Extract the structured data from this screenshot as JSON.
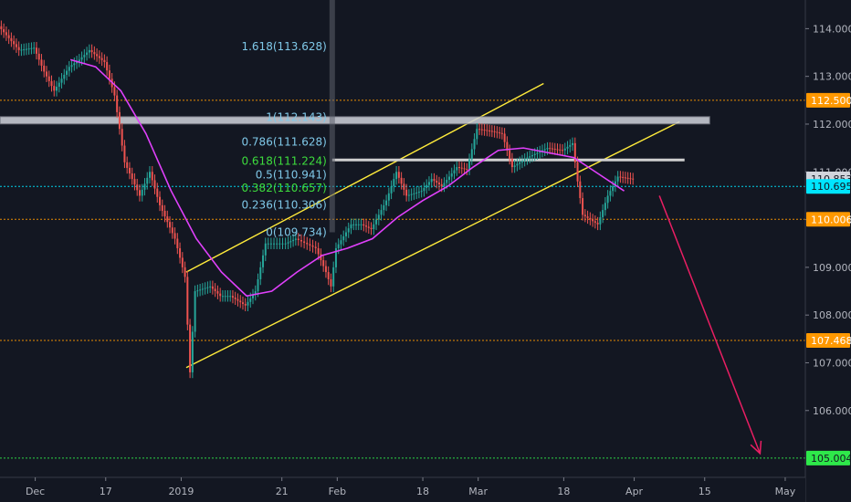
{
  "chart_data": {
    "type": "line",
    "instrument_view": "candlestick",
    "x_axis": {
      "range": [
        "2018-11-26",
        "2019-05-05"
      ],
      "ticks": [
        {
          "date": "2018-12-03",
          "label": "Dec"
        },
        {
          "date": "2018-12-17",
          "label": "17"
        },
        {
          "date": "2019-01-01",
          "label": "2019"
        },
        {
          "date": "2019-01-21",
          "label": "21"
        },
        {
          "date": "2019-02-01",
          "label": "Feb"
        },
        {
          "date": "2019-02-18",
          "label": "18"
        },
        {
          "date": "2019-03-01",
          "label": "Mar"
        },
        {
          "date": "2019-03-18",
          "label": "18"
        },
        {
          "date": "2019-04-01",
          "label": "Apr"
        },
        {
          "date": "2019-04-15",
          "label": "15"
        },
        {
          "date": "2019-05-01",
          "label": "May"
        }
      ]
    },
    "y_axis": {
      "range": [
        104.6,
        114.6
      ],
      "ticks": [
        "114.000",
        "113.000",
        "112.000",
        "111.000",
        "110.000",
        "109.000",
        "108.000",
        "107.000",
        "106.000"
      ],
      "tick_values": [
        114,
        113,
        112,
        111,
        110,
        109,
        108,
        107,
        106
      ]
    },
    "price_markers": [
      {
        "label": "112.500",
        "value": 112.5,
        "color": "#ff9800"
      },
      {
        "label": "110.853",
        "value": 110.853,
        "color": "#b2b5be"
      },
      {
        "label": "110.695",
        "value": 110.695,
        "color": "#00e5ff"
      },
      {
        "label": "110.006",
        "value": 110.006,
        "color": "#ff9800"
      },
      {
        "label": "107.468",
        "value": 107.468,
        "color": "#ff9800"
      },
      {
        "label": "105.004",
        "value": 105.004,
        "color": "#2ee84a"
      }
    ],
    "fibonacci": [
      {
        "label": "1.618(113.628)",
        "value": 113.628,
        "color": "#7fc8e8"
      },
      {
        "label": "1(112.143)",
        "value": 112.143,
        "color": "#7fc8e8"
      },
      {
        "label": "0.786(111.628)",
        "value": 111.628,
        "color": "#7fc8e8"
      },
      {
        "label": "0.618(111.224)",
        "value": 111.224,
        "color": "#3ddc3d"
      },
      {
        "label": "0.5(110.941)",
        "value": 110.941,
        "color": "#7fc8e8"
      },
      {
        "label": "0.382(110.657)",
        "value": 110.657,
        "color": "#3ddc3d"
      },
      {
        "label": "0.236(110.306)",
        "value": 110.306,
        "color": "#7fc8e8"
      },
      {
        "label": "0(109.734)",
        "value": 109.734,
        "color": "#7fc8e8"
      }
    ],
    "series": [
      {
        "kind": "price",
        "color": "#26a69a",
        "points": [
          [
            "2018-11-26",
            114.05
          ],
          [
            "2018-11-28",
            113.8
          ],
          [
            "2018-11-30",
            113.55
          ],
          [
            "2018-12-03",
            113.6
          ],
          [
            "2018-12-05",
            113.1
          ],
          [
            "2018-12-07",
            112.7
          ],
          [
            "2018-12-10",
            113.2
          ],
          [
            "2018-12-12",
            113.35
          ],
          [
            "2018-12-14",
            113.55
          ],
          [
            "2018-12-17",
            113.3
          ],
          [
            "2018-12-19",
            112.6
          ],
          [
            "2018-12-21",
            111.2
          ],
          [
            "2018-12-24",
            110.5
          ],
          [
            "2018-12-26",
            111.0
          ],
          [
            "2018-12-28",
            110.3
          ],
          [
            "2018-12-31",
            109.6
          ],
          [
            "2019-01-02",
            108.8
          ],
          [
            "2019-01-03",
            106.8
          ],
          [
            "2019-01-04",
            108.5
          ],
          [
            "2019-01-07",
            108.6
          ],
          [
            "2019-01-09",
            108.4
          ],
          [
            "2019-01-11",
            108.4
          ],
          [
            "2019-01-14",
            108.2
          ],
          [
            "2019-01-16",
            108.5
          ],
          [
            "2019-01-18",
            109.5
          ],
          [
            "2019-01-22",
            109.5
          ],
          [
            "2019-01-24",
            109.6
          ],
          [
            "2019-01-28",
            109.4
          ],
          [
            "2019-01-30",
            108.9
          ],
          [
            "2019-01-31",
            108.6
          ],
          [
            "2019-02-01",
            109.4
          ],
          [
            "2019-02-04",
            109.9
          ],
          [
            "2019-02-06",
            109.9
          ],
          [
            "2019-02-08",
            109.8
          ],
          [
            "2019-02-11",
            110.4
          ],
          [
            "2019-02-13",
            111.0
          ],
          [
            "2019-02-15",
            110.5
          ],
          [
            "2019-02-18",
            110.6
          ],
          [
            "2019-02-20",
            110.85
          ],
          [
            "2019-02-22",
            110.7
          ],
          [
            "2019-02-25",
            111.1
          ],
          [
            "2019-02-27",
            111.05
          ],
          [
            "2019-03-01",
            111.9
          ],
          [
            "2019-03-04",
            111.85
          ],
          [
            "2019-03-06",
            111.8
          ],
          [
            "2019-03-08",
            111.1
          ],
          [
            "2019-03-11",
            111.3
          ],
          [
            "2019-03-13",
            111.4
          ],
          [
            "2019-03-15",
            111.5
          ],
          [
            "2019-03-18",
            111.45
          ],
          [
            "2019-03-20",
            111.6
          ],
          [
            "2019-03-21",
            110.8
          ],
          [
            "2019-03-22",
            110.1
          ],
          [
            "2019-03-25",
            109.9
          ],
          [
            "2019-03-27",
            110.5
          ],
          [
            "2019-03-29",
            110.9
          ],
          [
            "2019-04-01",
            110.85
          ]
        ]
      },
      {
        "kind": "moving-average",
        "color": "#e040fb",
        "points": [
          [
            "2018-12-10",
            113.35
          ],
          [
            "2018-12-15",
            113.2
          ],
          [
            "2018-12-20",
            112.7
          ],
          [
            "2018-12-25",
            111.8
          ],
          [
            "2018-12-30",
            110.6
          ],
          [
            "2019-01-04",
            109.6
          ],
          [
            "2019-01-09",
            108.9
          ],
          [
            "2019-01-14",
            108.4
          ],
          [
            "2019-01-19",
            108.5
          ],
          [
            "2019-01-24",
            108.9
          ],
          [
            "2019-01-29",
            109.25
          ],
          [
            "2019-02-03",
            109.4
          ],
          [
            "2019-02-08",
            109.6
          ],
          [
            "2019-02-13",
            110.05
          ],
          [
            "2019-02-18",
            110.4
          ],
          [
            "2019-02-23",
            110.7
          ],
          [
            "2019-02-28",
            111.1
          ],
          [
            "2019-03-05",
            111.45
          ],
          [
            "2019-03-10",
            111.5
          ],
          [
            "2019-03-15",
            111.4
          ],
          [
            "2019-03-20",
            111.3
          ],
          [
            "2019-03-25",
            110.95
          ],
          [
            "2019-03-30",
            110.6
          ]
        ]
      }
    ],
    "drawings": [
      {
        "kind": "channel-upper",
        "color": "#ffeb3b",
        "from": [
          "2019-01-02",
          108.9
        ],
        "to": [
          "2019-03-14",
          112.85
        ]
      },
      {
        "kind": "channel-lower",
        "color": "#ffeb3b",
        "from": [
          "2019-01-02",
          106.9
        ],
        "to": [
          "2019-04-10",
          112.05
        ]
      },
      {
        "kind": "resistance-zone",
        "color": "#9e9e9e",
        "from": [
          "2018-11-26",
          112.08
        ],
        "to": [
          "2019-04-16",
          112.08
        ]
      },
      {
        "kind": "level",
        "color": "#cfcfcf",
        "from": [
          "2019-01-31",
          111.25
        ],
        "to": [
          "2019-04-11",
          111.25
        ]
      },
      {
        "kind": "forecast-arrow",
        "color": "#e91e63",
        "from": [
          "2019-04-06",
          110.5
        ],
        "to": [
          "2019-04-26",
          105.1
        ]
      }
    ],
    "grid": false,
    "legend": "none"
  }
}
